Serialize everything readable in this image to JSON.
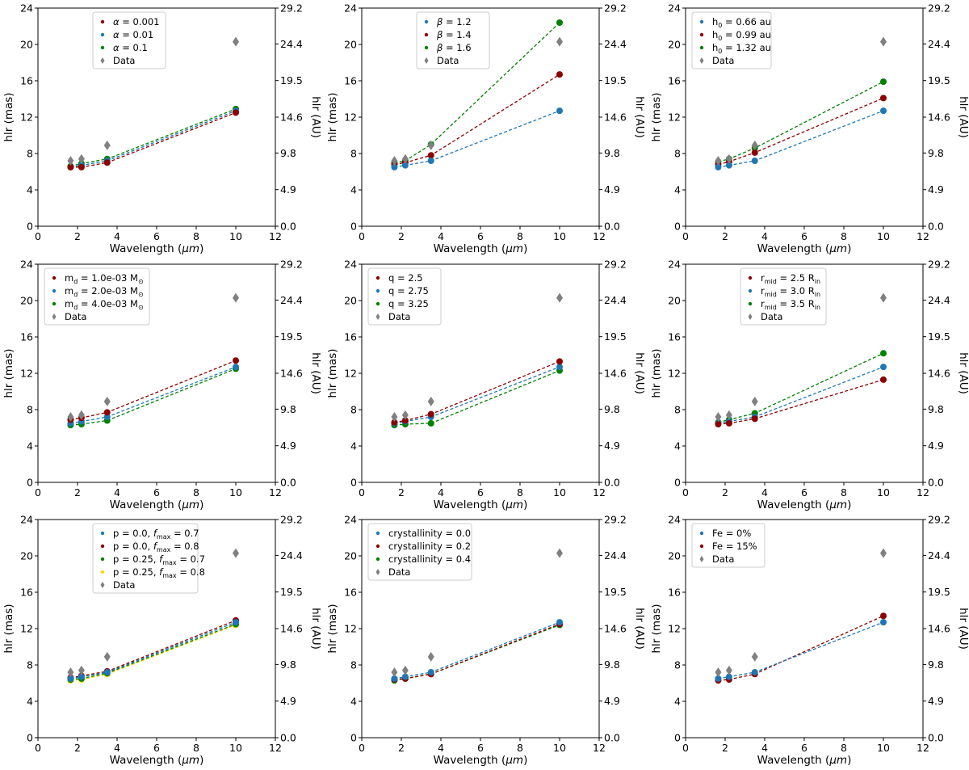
{
  "figure": {
    "x_label": "Wavelength (μm)",
    "y_label_left": "hlr (mas)",
    "y_label_right": "hlr (AU)"
  },
  "colors": {
    "blue": "#1f77b4",
    "red": "#8b0000",
    "green": "#008000",
    "gold": "#ffd700",
    "data": "#808080"
  },
  "chart_data": [
    {
      "type": "line",
      "panel": "alpha",
      "x": [
        1.65,
        2.2,
        3.5,
        10.0
      ],
      "xlim": [
        0,
        12
      ],
      "xticks": [
        "0",
        "2",
        "4",
        "6",
        "8",
        "10",
        "12"
      ],
      "ylim": [
        0,
        24
      ],
      "yticks": [
        "0",
        "4",
        "8",
        "12",
        "16",
        "20",
        "24"
      ],
      "ylim_right": [
        0,
        29.2
      ],
      "yticks_right": [
        "0.0",
        "4.9",
        "9.8",
        "14.6",
        "19.5",
        "24.4",
        "29.2"
      ],
      "legend_position": "upper-left-center",
      "series": [
        {
          "label": "α = 0.001",
          "color": "red",
          "values": [
            6.5,
            6.5,
            7.0,
            12.5
          ]
        },
        {
          "label": "α = 0.01",
          "color": "blue",
          "values": [
            6.5,
            6.7,
            7.2,
            12.7
          ]
        },
        {
          "label": "α = 0.1",
          "color": "green",
          "values": [
            6.6,
            6.9,
            7.4,
            12.9
          ]
        }
      ],
      "data_points": {
        "label": "Data",
        "values": [
          7.2,
          7.4,
          8.9,
          20.3
        ]
      }
    },
    {
      "type": "line",
      "panel": "beta",
      "x": [
        1.65,
        2.2,
        3.5,
        10.0
      ],
      "xlim": [
        0,
        12
      ],
      "xticks": [
        "0",
        "2",
        "4",
        "6",
        "8",
        "10",
        "12"
      ],
      "ylim": [
        0,
        24
      ],
      "yticks": [
        "0",
        "4",
        "8",
        "12",
        "16",
        "20",
        "24"
      ],
      "ylim_right": [
        0,
        29.2
      ],
      "yticks_right": [
        "0.0",
        "4.9",
        "9.8",
        "14.6",
        "19.5",
        "24.4",
        "29.2"
      ],
      "legend_position": "upper-left-center",
      "series": [
        {
          "label": "β = 1.2",
          "color": "blue",
          "values": [
            6.5,
            6.7,
            7.2,
            12.7
          ]
        },
        {
          "label": "β = 1.4",
          "color": "red",
          "values": [
            6.8,
            7.0,
            7.8,
            16.7
          ]
        },
        {
          "label": "β = 1.6",
          "color": "green",
          "values": [
            7.0,
            7.2,
            9.0,
            22.4
          ]
        }
      ],
      "data_points": {
        "label": "Data",
        "values": [
          7.2,
          7.4,
          8.9,
          20.3
        ]
      }
    },
    {
      "type": "line",
      "panel": "h0",
      "x": [
        1.65,
        2.2,
        3.5,
        10.0
      ],
      "xlim": [
        0,
        12
      ],
      "xticks": [
        "0",
        "2",
        "4",
        "6",
        "8",
        "10",
        "12"
      ],
      "ylim": [
        0,
        24
      ],
      "yticks": [
        "0",
        "4",
        "8",
        "12",
        "16",
        "20",
        "24"
      ],
      "ylim_right": [
        0,
        29.2
      ],
      "yticks_right": [
        "0.0",
        "4.9",
        "9.8",
        "14.6",
        "19.5",
        "24.4",
        "29.2"
      ],
      "legend_position": "upper-left",
      "series": [
        {
          "label": "h",
          "sub": "0",
          "after": " = 0.66 au",
          "color": "blue",
          "values": [
            6.5,
            6.7,
            7.2,
            12.7
          ]
        },
        {
          "label": "h",
          "sub": "0",
          "after": " = 0.99 au",
          "color": "red",
          "values": [
            6.8,
            7.1,
            8.1,
            14.1
          ]
        },
        {
          "label": "h",
          "sub": "0",
          "after": " = 1.32 au",
          "color": "green",
          "values": [
            7.1,
            7.4,
            8.6,
            15.9
          ]
        }
      ],
      "data_points": {
        "label": "Data",
        "values": [
          7.2,
          7.4,
          8.9,
          20.3
        ]
      }
    },
    {
      "type": "line",
      "panel": "md",
      "x": [
        1.65,
        2.2,
        3.5,
        10.0
      ],
      "xlim": [
        0,
        12
      ],
      "xticks": [
        "0",
        "2",
        "4",
        "6",
        "8",
        "10",
        "12"
      ],
      "ylim": [
        0,
        24
      ],
      "yticks": [
        "0",
        "4",
        "8",
        "12",
        "16",
        "20",
        "24"
      ],
      "ylim_right": [
        0,
        29.2
      ],
      "yticks_right": [
        "0.0",
        "4.9",
        "9.8",
        "14.6",
        "19.5",
        "24.4",
        "29.2"
      ],
      "legend_position": "upper-left",
      "series": [
        {
          "label": "m",
          "sub": "d",
          "after": " = 1.0e-03 M",
          "post_sub": "⊙",
          "color": "red",
          "values": [
            6.9,
            7.1,
            7.7,
            13.4
          ]
        },
        {
          "label": "m",
          "sub": "d",
          "after": " = 2.0e-03 M",
          "post_sub": "⊙",
          "color": "blue",
          "values": [
            6.5,
            6.7,
            7.2,
            12.7
          ]
        },
        {
          "label": "m",
          "sub": "d",
          "after": " = 4.0e-03 M",
          "post_sub": "⊙",
          "color": "green",
          "values": [
            6.3,
            6.4,
            6.8,
            12.5
          ]
        }
      ],
      "data_points": {
        "label": "Data",
        "values": [
          7.2,
          7.4,
          8.9,
          20.3
        ]
      }
    },
    {
      "type": "line",
      "panel": "q",
      "x": [
        1.65,
        2.2,
        3.5,
        10.0
      ],
      "xlim": [
        0,
        12
      ],
      "xticks": [
        "0",
        "2",
        "4",
        "6",
        "8",
        "10",
        "12"
      ],
      "ylim": [
        0,
        24
      ],
      "yticks": [
        "0",
        "4",
        "8",
        "12",
        "16",
        "20",
        "24"
      ],
      "ylim_right": [
        0,
        29.2
      ],
      "yticks_right": [
        "0.0",
        "4.9",
        "9.8",
        "14.6",
        "19.5",
        "24.4",
        "29.2"
      ],
      "legend_position": "upper-left",
      "series": [
        {
          "label": "q = 2.5",
          "color": "red",
          "values": [
            6.6,
            6.8,
            7.5,
            13.3
          ]
        },
        {
          "label": "q = 2.75",
          "color": "blue",
          "values": [
            6.5,
            6.7,
            7.2,
            12.7
          ]
        },
        {
          "label": "q = 3.25",
          "color": "green",
          "values": [
            6.3,
            6.4,
            6.5,
            12.3
          ]
        }
      ],
      "data_points": {
        "label": "Data",
        "values": [
          7.2,
          7.4,
          8.9,
          20.3
        ]
      }
    },
    {
      "type": "line",
      "panel": "rmid",
      "x": [
        1.65,
        2.2,
        3.5,
        10.0
      ],
      "xlim": [
        0,
        12
      ],
      "xticks": [
        "0",
        "2",
        "4",
        "6",
        "8",
        "10",
        "12"
      ],
      "ylim": [
        0,
        24
      ],
      "yticks": [
        "0",
        "4",
        "8",
        "12",
        "16",
        "20",
        "24"
      ],
      "ylim_right": [
        0,
        29.2
      ],
      "yticks_right": [
        "0.0",
        "4.9",
        "9.8",
        "14.6",
        "19.5",
        "24.4",
        "29.2"
      ],
      "legend_position": "upper-left-center",
      "series": [
        {
          "label": "r",
          "sub": "mid",
          "after": " = 2.5 R",
          "post_sub": "in",
          "color": "red",
          "values": [
            6.4,
            6.5,
            7.0,
            11.3
          ]
        },
        {
          "label": "r",
          "sub": "mid",
          "after": " = 3.0 R",
          "post_sub": "in",
          "color": "blue",
          "values": [
            6.5,
            6.7,
            7.2,
            12.7
          ]
        },
        {
          "label": "r",
          "sub": "mid",
          "after": " = 3.5 R",
          "post_sub": "in",
          "color": "green",
          "values": [
            6.6,
            6.9,
            7.6,
            14.2
          ]
        }
      ],
      "data_points": {
        "label": "Data",
        "values": [
          7.2,
          7.4,
          8.9,
          20.3
        ]
      }
    },
    {
      "type": "line",
      "panel": "p_fmax",
      "x": [
        1.65,
        2.2,
        3.5,
        10.0
      ],
      "xlim": [
        0,
        12
      ],
      "xticks": [
        "0",
        "2",
        "4",
        "6",
        "8",
        "10",
        "12"
      ],
      "ylim": [
        0,
        24
      ],
      "yticks": [
        "0",
        "4",
        "8",
        "12",
        "16",
        "20",
        "24"
      ],
      "ylim_right": [
        0,
        29.2
      ],
      "yticks_right": [
        "0.0",
        "4.9",
        "9.8",
        "14.6",
        "19.5",
        "24.4",
        "29.2"
      ],
      "legend_position": "upper-left-center",
      "series": [
        {
          "label": "p = 0.0, ",
          "sub_italic_f": true,
          "sub": "max",
          "after": " = 0.7",
          "color": "blue",
          "values": [
            6.5,
            6.7,
            7.2,
            12.7
          ]
        },
        {
          "label": "p = 0.0, ",
          "sub_italic_f": true,
          "sub": "max",
          "after": " = 0.8",
          "color": "red",
          "values": [
            6.6,
            6.8,
            7.3,
            12.9
          ]
        },
        {
          "label": "p = 0.25, ",
          "sub_italic_f": true,
          "sub": "max",
          "after": " = 0.7",
          "color": "green",
          "values": [
            6.4,
            6.5,
            7.1,
            12.5
          ]
        },
        {
          "label": "p = 0.25, ",
          "sub_italic_f": true,
          "sub": "max",
          "after": " = 0.8",
          "color": "gold",
          "values": [
            6.3,
            6.4,
            7.0,
            12.4
          ]
        }
      ],
      "data_points": {
        "label": "Data",
        "values": [
          7.2,
          7.4,
          8.9,
          20.3
        ]
      }
    },
    {
      "type": "line",
      "panel": "crystallinity",
      "x": [
        1.65,
        2.2,
        3.5,
        10.0
      ],
      "xlim": [
        0,
        12
      ],
      "xticks": [
        "0",
        "2",
        "4",
        "6",
        "8",
        "10",
        "12"
      ],
      "ylim": [
        0,
        24
      ],
      "yticks": [
        "0",
        "4",
        "8",
        "12",
        "16",
        "20",
        "24"
      ],
      "ylim_right": [
        0,
        29.2
      ],
      "yticks_right": [
        "0.0",
        "4.9",
        "9.8",
        "14.6",
        "19.5",
        "24.4",
        "29.2"
      ],
      "legend_position": "upper-left",
      "series": [
        {
          "label": "crystallinity = 0.0",
          "color": "blue",
          "values": [
            6.5,
            6.7,
            7.2,
            12.7
          ]
        },
        {
          "label": "crystallinity = 0.2",
          "color": "red",
          "values": [
            6.4,
            6.5,
            7.0,
            12.5
          ]
        },
        {
          "label": "crystallinity = 0.4",
          "color": "green",
          "values": [
            6.3,
            6.5,
            7.0,
            12.4
          ]
        }
      ],
      "data_points": {
        "label": "Data",
        "values": [
          7.2,
          7.4,
          8.9,
          20.3
        ]
      }
    },
    {
      "type": "line",
      "panel": "fe",
      "x": [
        1.65,
        2.2,
        3.5,
        10.0
      ],
      "xlim": [
        0,
        12
      ],
      "xticks": [
        "0",
        "2",
        "4",
        "6",
        "8",
        "10",
        "12"
      ],
      "ylim": [
        0,
        24
      ],
      "yticks": [
        "0",
        "4",
        "8",
        "12",
        "16",
        "20",
        "24"
      ],
      "ylim_right": [
        0,
        29.2
      ],
      "yticks_right": [
        "0.0",
        "4.9",
        "9.8",
        "14.6",
        "19.5",
        "24.4",
        "29.2"
      ],
      "legend_position": "upper-left",
      "series": [
        {
          "label": "Fe = 0%",
          "color": "blue",
          "values": [
            6.5,
            6.7,
            7.2,
            12.7
          ]
        },
        {
          "label": "Fe = 15%",
          "color": "red",
          "values": [
            6.3,
            6.4,
            7.0,
            13.4
          ]
        }
      ],
      "data_points": {
        "label": "Data",
        "values": [
          7.2,
          7.4,
          8.9,
          20.3
        ]
      }
    }
  ]
}
